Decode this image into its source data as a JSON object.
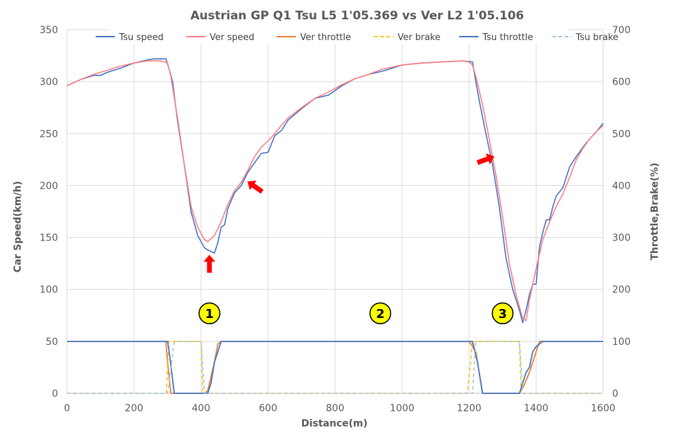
{
  "chart_data": {
    "type": "line",
    "title": "Austrian GP Q1 Tsu L5 1'05.369 vs Ver L2 1'05.106",
    "xlabel": "Distance(m)",
    "ylabel": "Car Speed(km/h)",
    "y2label": "Throttle,Brake(%)",
    "xlim": [
      0,
      1600
    ],
    "ylim": [
      0,
      350
    ],
    "y2lim": [
      0,
      700
    ],
    "xticks": [
      0,
      200,
      400,
      600,
      800,
      1000,
      1200,
      1400,
      1600
    ],
    "yticks": [
      0,
      50,
      100,
      150,
      200,
      250,
      300,
      350
    ],
    "y2ticks": [
      0,
      100,
      200,
      300,
      400,
      500,
      600,
      700
    ],
    "grid": true,
    "legend_position": "top",
    "series": [
      {
        "name": "Tsu speed",
        "axis": "left",
        "color": "#4472c4",
        "dash": "solid",
        "width": 1.6,
        "x": [
          0,
          40,
          80,
          100,
          120,
          160,
          200,
          240,
          260,
          295,
          305,
          315,
          330,
          350,
          370,
          390,
          410,
          420,
          440,
          450,
          460,
          470,
          480,
          500,
          520,
          540,
          560,
          580,
          600,
          620,
          640,
          660,
          700,
          740,
          780,
          820,
          860,
          900,
          940,
          1000,
          1060,
          1120,
          1180,
          1210,
          1220,
          1230,
          1250,
          1270,
          1290,
          1310,
          1330,
          1350,
          1360,
          1370,
          1380,
          1390,
          1400,
          1410,
          1420,
          1430,
          1440,
          1450,
          1460,
          1480,
          1500,
          1520,
          1540,
          1560,
          1580,
          1600
        ],
        "y": [
          296,
          302,
          306,
          306,
          309,
          313,
          318,
          321,
          322,
          322,
          312,
          300,
          262,
          220,
          175,
          152,
          140,
          138,
          135,
          145,
          160,
          162,
          178,
          193,
          200,
          213,
          222,
          231,
          232,
          248,
          253,
          263,
          274,
          284,
          287,
          296,
          303,
          307,
          310,
          316,
          318,
          319,
          320,
          319,
          300,
          282,
          250,
          220,
          180,
          130,
          100,
          80,
          68,
          80,
          95,
          105,
          105,
          141,
          155,
          167,
          167,
          180,
          190,
          198,
          218,
          228,
          237,
          245,
          252,
          260
        ]
      },
      {
        "name": "Ver speed",
        "axis": "left",
        "color": "#ff7c80",
        "dash": "solid",
        "width": 1.6,
        "x": [
          0,
          40,
          80,
          120,
          160,
          200,
          240,
          280,
          300,
          310,
          330,
          350,
          370,
          390,
          410,
          420,
          440,
          460,
          480,
          500,
          520,
          540,
          560,
          580,
          600,
          620,
          640,
          660,
          700,
          740,
          780,
          820,
          860,
          900,
          940,
          1000,
          1060,
          1120,
          1180,
          1200,
          1210,
          1220,
          1240,
          1260,
          1280,
          1300,
          1320,
          1340,
          1360,
          1370,
          1380,
          1400,
          1420,
          1440,
          1460,
          1480,
          1500,
          1520,
          1540,
          1560,
          1580,
          1600
        ],
        "y": [
          296,
          302,
          307,
          311,
          315,
          318,
          320,
          320,
          318,
          305,
          265,
          220,
          180,
          160,
          148,
          146,
          152,
          165,
          182,
          195,
          203,
          215,
          228,
          237,
          243,
          250,
          258,
          265,
          275,
          284,
          290,
          297,
          303,
          307,
          312,
          316,
          318,
          319,
          320,
          319,
          316,
          305,
          278,
          245,
          210,
          170,
          125,
          95,
          72,
          70,
          90,
          120,
          148,
          165,
          180,
          192,
          208,
          225,
          236,
          245,
          252,
          258
        ]
      },
      {
        "name": "Ver throttle",
        "axis": "right",
        "color": "#ed7d31",
        "dash": "solid",
        "width": 1.8,
        "x": [
          0,
          295,
          300,
          310,
          410,
          420,
          440,
          450,
          460,
          1200,
          1220,
          1240,
          1350,
          1360,
          1380,
          1400,
          1410,
          1600
        ],
        "y": [
          100,
          100,
          60,
          0,
          0,
          5,
          60,
          95,
          100,
          100,
          80,
          0,
          0,
          10,
          40,
          80,
          100,
          100
        ]
      },
      {
        "name": "Ver brake",
        "axis": "right",
        "color": "#ffc000",
        "dash": "dashed",
        "width": 1.6,
        "x": [
          0,
          296,
          304,
          400,
          405,
          420,
          1195,
          1210,
          1350,
          1355,
          1365,
          1600
        ],
        "y": [
          0,
          0,
          100,
          100,
          0,
          0,
          0,
          100,
          100,
          0,
          0,
          0
        ]
      },
      {
        "name": "Tsu throttle",
        "axis": "right",
        "color": "#4472c4",
        "dash": "solid",
        "width": 1.8,
        "x": [
          0,
          300,
          305,
          320,
          410,
          420,
          430,
          440,
          450,
          460,
          470,
          1210,
          1225,
          1240,
          1350,
          1360,
          1370,
          1380,
          1390,
          1400,
          1420,
          1600
        ],
        "y": [
          100,
          100,
          80,
          0,
          0,
          0,
          20,
          60,
          80,
          100,
          100,
          100,
          60,
          0,
          0,
          20,
          40,
          50,
          80,
          90,
          100,
          100
        ]
      },
      {
        "name": "Tsu brake",
        "axis": "right",
        "color": "#9dc3e6",
        "dash": "dashed",
        "width": 1.6,
        "x": [
          0,
          300,
          320,
          400,
          410,
          420,
          1210,
          1220,
          1350,
          1360,
          1370,
          1600
        ],
        "y": [
          0,
          0,
          100,
          100,
          0,
          0,
          0,
          100,
          100,
          0,
          0,
          0
        ]
      }
    ],
    "annotations": [
      {
        "type": "circle-label",
        "text": "1",
        "x": 425,
        "y": 77
      },
      {
        "type": "circle-label",
        "text": "2",
        "x": 935,
        "y": 77
      },
      {
        "type": "circle-label",
        "text": "3",
        "x": 1300,
        "y": 77
      },
      {
        "type": "arrow",
        "color": "#ff0000",
        "x": 425,
        "y": 130,
        "direction": "up"
      },
      {
        "type": "arrow",
        "color": "#ff0000",
        "x": 540,
        "y": 203,
        "direction": "up-left"
      },
      {
        "type": "arrow",
        "color": "#ff0000",
        "x": 1250,
        "y": 225,
        "direction": "up-right"
      }
    ]
  }
}
